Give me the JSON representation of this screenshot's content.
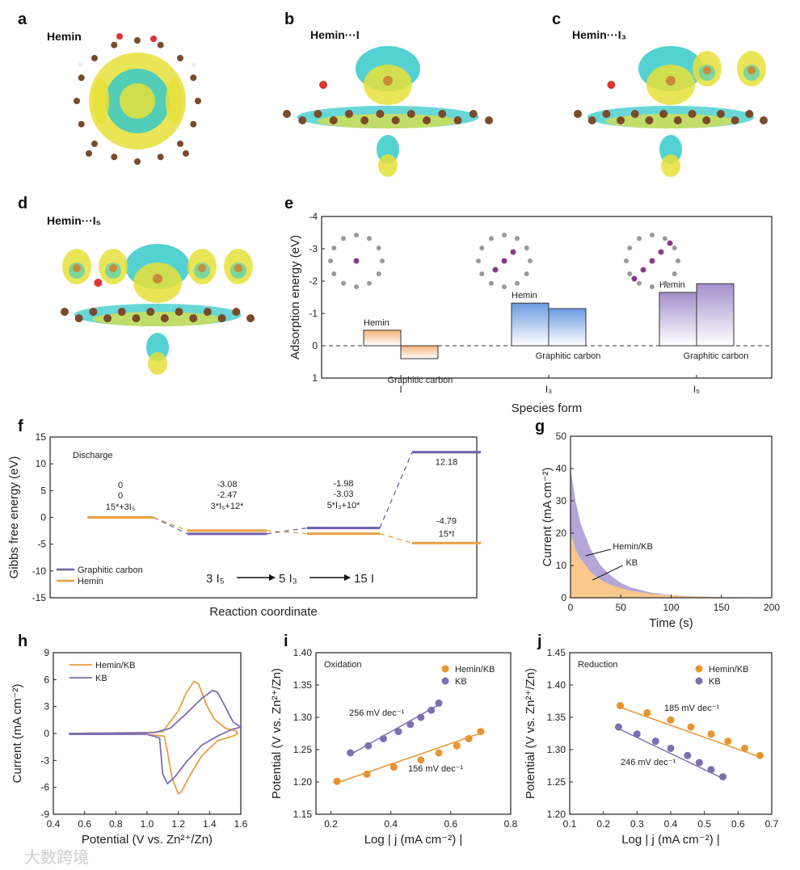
{
  "panels": {
    "a": {
      "letter": "a",
      "title": "Hemin"
    },
    "b": {
      "letter": "b",
      "title": "Hemin···I"
    },
    "c": {
      "letter": "c",
      "title": "Hemin···I₃"
    },
    "d": {
      "letter": "d",
      "title": "Hemin···I₅"
    }
  },
  "watermark": "大数跨境",
  "chart_data": [
    {
      "panel_letter": "e",
      "type": "bar",
      "xlabel": "Species form",
      "ylabel": "Adsorption energy (eV)",
      "ylim": [
        -4,
        1
      ],
      "y_inverted": true,
      "yticks": [
        "-4",
        "-3",
        "-2",
        "-1",
        "0",
        "1"
      ],
      "categories": [
        "I",
        "I₃",
        "I₅"
      ],
      "series": [
        {
          "name": "Hemin",
          "values": [
            -0.48,
            -1.32,
            -1.65
          ]
        },
        {
          "name": "Graphitic carbon",
          "values": [
            0.4,
            -1.15,
            -1.92
          ]
        }
      ],
      "category_colors": [
        "#f2b277",
        "#6a9be0",
        "#a58fcc"
      ],
      "reference_line": 0
    },
    {
      "panel_letter": "f",
      "type": "line",
      "title": "Discharge",
      "xlabel": "Reaction coordinate",
      "ylabel": "Gibbs free energy (eV)",
      "ylim": [
        -15,
        15
      ],
      "yticks": [
        "15",
        "10",
        "5",
        "0",
        "-5",
        "-10",
        "-15"
      ],
      "states": [
        "15*+3I₅",
        "3*I₅+12*",
        "5*I₃+10*",
        "15*I"
      ],
      "series": [
        {
          "name": "Graphitic carbon",
          "values": [
            0,
            -3.08,
            -1.98,
            12.18
          ],
          "labels": [
            "0",
            "-3.08",
            "-1.98",
            "12.18"
          ],
          "color": "#6f5fa8"
        },
        {
          "name": "Hemin",
          "values": [
            0,
            -2.47,
            -3.03,
            -4.79
          ],
          "labels": [
            "0",
            "-2.47",
            "-3.03",
            "-4.79"
          ],
          "color": "#e8a040"
        }
      ],
      "pathway": [
        "3 I₅",
        "5 I₃",
        "15 I"
      ],
      "legend": "bottom-left"
    },
    {
      "panel_letter": "g",
      "type": "area",
      "xlabel": "Time (s)",
      "ylabel": "Current (mA cm⁻²)",
      "xlim": [
        0,
        200
      ],
      "ylim": [
        0,
        50
      ],
      "xticks": [
        "0",
        "50",
        "100",
        "150",
        "200"
      ],
      "yticks": [
        "0",
        "10",
        "20",
        "30",
        "40",
        "50"
      ],
      "x": [
        0,
        5,
        10,
        20,
        30,
        40,
        50,
        60,
        80,
        100,
        125,
        150,
        200
      ],
      "series": [
        {
          "name": "Hemin/KB",
          "values": [
            40,
            30,
            23,
            15,
            10,
            6.8,
            4.6,
            3.2,
            1.6,
            0.8,
            0.4,
            0.2,
            0.1
          ],
          "color": "#b4a6d6"
        },
        {
          "name": "KB",
          "values": [
            20,
            15,
            12,
            8,
            5.5,
            4,
            3,
            2.2,
            1.2,
            0.7,
            0.35,
            0.2,
            0.1
          ],
          "color": "#f9c88c"
        }
      ]
    },
    {
      "panel_letter": "h",
      "type": "line",
      "xlabel": "Potential (V vs. Zn²⁺/Zn)",
      "ylabel": "Current (mA cm⁻²)",
      "xlim": [
        0.4,
        1.6
      ],
      "ylim": [
        -9,
        9
      ],
      "xticks": [
        "0.4",
        "0.6",
        "0.8",
        "1.0",
        "1.2",
        "1.4",
        "1.6"
      ],
      "yticks": [
        "9",
        "6",
        "3",
        "0",
        "-3",
        "-6",
        "-9"
      ],
      "legend": "top-left",
      "series": [
        {
          "name": "Hemin/KB",
          "color": "#e8a040",
          "x": [
            0.5,
            1.0,
            1.1,
            1.2,
            1.25,
            1.3,
            1.33,
            1.38,
            1.43,
            1.5,
            1.57,
            1.58,
            1.55,
            1.45,
            1.35,
            1.28,
            1.22,
            1.2,
            1.16,
            1.13,
            1.11,
            1.0,
            0.5
          ],
          "y": [
            0,
            0.1,
            0.2,
            2.5,
            4.5,
            5.8,
            5.5,
            3.2,
            1.6,
            0.6,
            0.3,
            0,
            -0.3,
            -0.8,
            -2.5,
            -4.5,
            -6.5,
            -6.7,
            -5,
            -2,
            -0.3,
            -0.1,
            -0.1
          ]
        },
        {
          "name": "KB",
          "color": "#7e6fb0",
          "x": [
            0.5,
            1.05,
            1.15,
            1.25,
            1.35,
            1.42,
            1.45,
            1.5,
            1.55,
            1.6,
            1.55,
            1.45,
            1.35,
            1.25,
            1.18,
            1.13,
            1.1,
            1.08,
            1.0,
            0.5
          ],
          "y": [
            0,
            0.1,
            0.6,
            2.2,
            3.9,
            4.8,
            4.6,
            3.0,
            1.3,
            0.7,
            0.5,
            -0.3,
            -1.3,
            -3.2,
            -4.8,
            -5.6,
            -4.5,
            -0.5,
            -0.1,
            -0.1
          ]
        }
      ]
    },
    {
      "panel_letter": "i",
      "type": "scatter",
      "title": "Oxidation",
      "xlabel": "Log | j (mA cm⁻²) |",
      "ylabel": "Potential (V vs. Zn²⁺/Zn)",
      "xlim": [
        0.15,
        0.8
      ],
      "ylim": [
        1.15,
        1.4
      ],
      "xticks": [
        "0.2",
        "0.4",
        "0.6",
        "0.8"
      ],
      "yticks": [
        "1.40",
        "1.35",
        "1.30",
        "1.25",
        "1.20",
        "1.15"
      ],
      "legend": "top-right",
      "series": [
        {
          "name": "Hemin/KB",
          "color": "#e8942e",
          "slope_label": "156 mV dec⁻¹",
          "x": [
            0.22,
            0.32,
            0.41,
            0.5,
            0.56,
            0.62,
            0.66,
            0.7
          ],
          "y": [
            1.201,
            1.212,
            1.223,
            1.234,
            1.245,
            1.256,
            1.267,
            1.278
          ]
        },
        {
          "name": "KB",
          "color": "#7e6fb0",
          "slope_label": "256 mV dec⁻¹",
          "x": [
            0.265,
            0.325,
            0.375,
            0.425,
            0.465,
            0.5,
            0.535,
            0.56
          ],
          "y": [
            1.245,
            1.256,
            1.267,
            1.278,
            1.289,
            1.3,
            1.311,
            1.322
          ]
        }
      ]
    },
    {
      "panel_letter": "j",
      "type": "scatter",
      "title": "Reduction",
      "xlabel": "Log | j (mA cm⁻²) |",
      "ylabel": "Potential (V vs. Zn²⁺/Zn)",
      "xlim": [
        0.1,
        0.7
      ],
      "ylim": [
        1.2,
        1.45
      ],
      "xticks": [
        "0.1",
        "0.2",
        "0.3",
        "0.4",
        "0.5",
        "0.6",
        "0.7"
      ],
      "yticks": [
        "1.45",
        "1.40",
        "1.35",
        "1.30",
        "1.25",
        "1.20"
      ],
      "legend": "top-right",
      "series": [
        {
          "name": "Hemin/KB",
          "color": "#e8942e",
          "slope_label": "185 mV dec⁻¹",
          "x": [
            0.25,
            0.33,
            0.4,
            0.46,
            0.52,
            0.57,
            0.62,
            0.665
          ],
          "y": [
            1.368,
            1.357,
            1.346,
            1.335,
            1.324,
            1.313,
            1.302,
            1.291
          ]
        },
        {
          "name": "KB",
          "color": "#7e6fb0",
          "slope_label": "246 mV dec⁻¹",
          "x": [
            0.245,
            0.3,
            0.355,
            0.4,
            0.45,
            0.485,
            0.52,
            0.555
          ],
          "y": [
            1.335,
            1.324,
            1.313,
            1.302,
            1.291,
            1.28,
            1.269,
            1.258
          ]
        }
      ]
    }
  ]
}
